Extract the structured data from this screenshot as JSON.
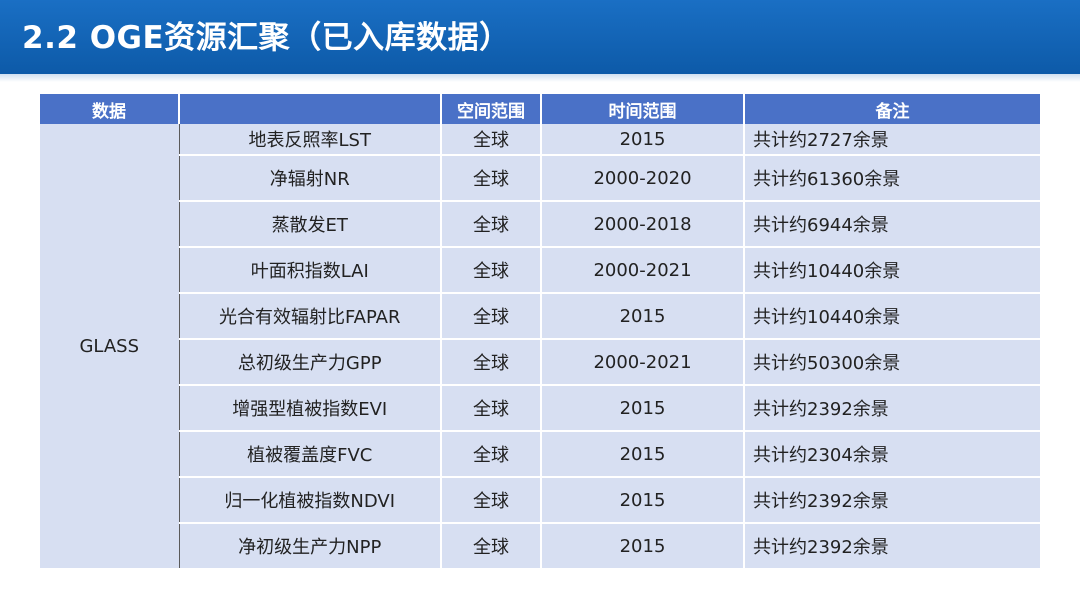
{
  "title": "2.2 OGE资源汇聚（已入库数据）",
  "table": {
    "headers": [
      "数据",
      "",
      "空间范围",
      "时间范围",
      "备注"
    ],
    "group": "GLASS",
    "rows": [
      {
        "name": "地表反照率LST",
        "space": "全球",
        "time": "2015",
        "note": "共计约2727余景"
      },
      {
        "name": "净辐射NR",
        "space": "全球",
        "time": "2000-2020",
        "note": "共计约61360余景"
      },
      {
        "name": "蒸散发ET",
        "space": "全球",
        "time": "2000-2018",
        "note": "共计约6944余景"
      },
      {
        "name": "叶面积指数LAI",
        "space": "全球",
        "time": "2000-2021",
        "note": "共计约10440余景"
      },
      {
        "name": "光合有效辐射比FAPAR",
        "space": "全球",
        "time": "2015",
        "note": "共计约10440余景"
      },
      {
        "name": "总初级生产力GPP",
        "space": "全球",
        "time": "2000-2021",
        "note": "共计约50300余景"
      },
      {
        "name": "增强型植被指数EVI",
        "space": "全球",
        "time": "2015",
        "note": "共计约2392余景"
      },
      {
        "name": "植被覆盖度FVC",
        "space": "全球",
        "time": "2015",
        "note": "共计约2304余景"
      },
      {
        "name": "归一化植被指数NDVI",
        "space": "全球",
        "time": "2015",
        "note": "共计约2392余景"
      },
      {
        "name": "净初级生产力NPP",
        "space": "全球",
        "time": "2015",
        "note": "共计约2392余景"
      }
    ]
  },
  "colors": {
    "title_bar": "#0d5aa8",
    "header_bg": "#4a71c7",
    "cell_bg": "#d7dff2"
  }
}
